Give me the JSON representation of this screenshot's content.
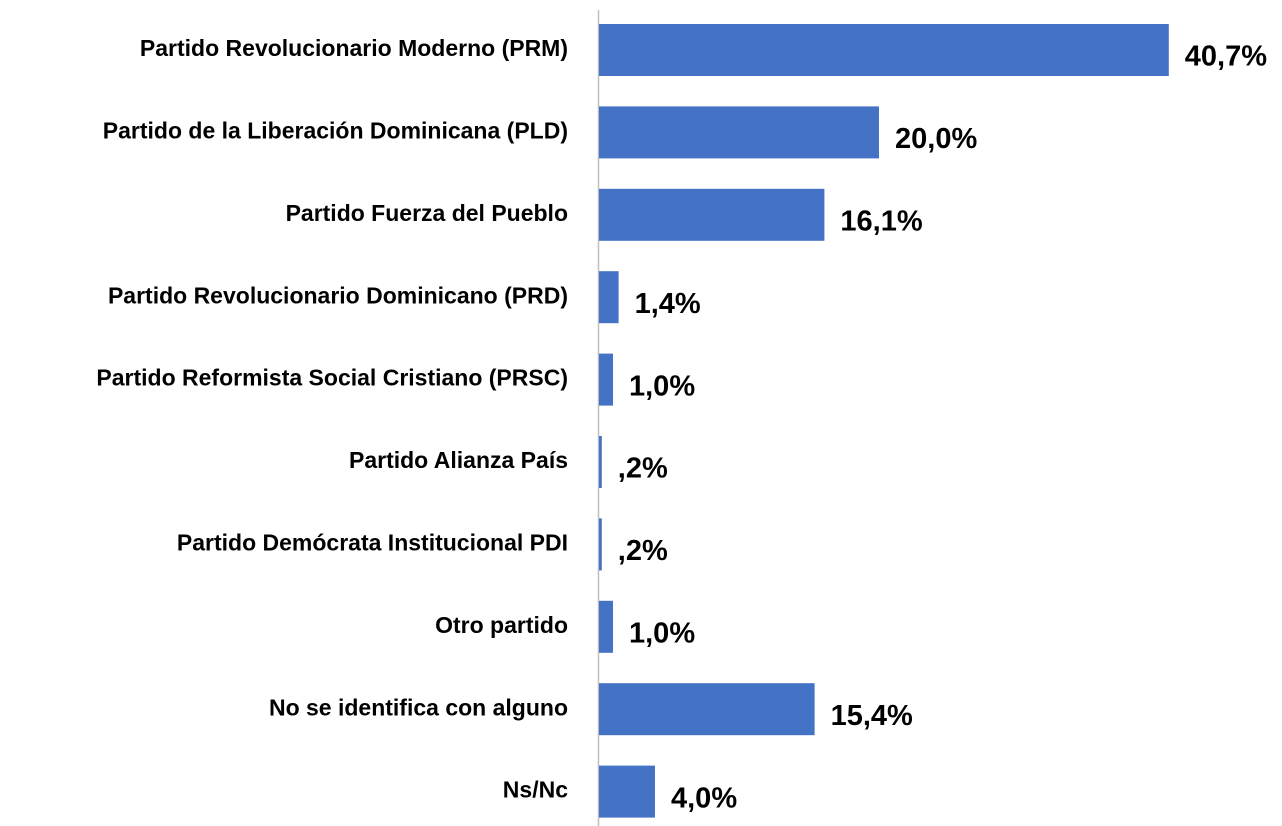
{
  "chart_data": {
    "type": "bar",
    "orientation": "horizontal",
    "categories": [
      "Partido Revolucionario Moderno (PRM)",
      "Partido de la Liberación Dominicana (PLD)",
      "Partido Fuerza del Pueblo",
      "Partido Revolucionario Dominicano (PRD)",
      "Partido Reformista Social Cristiano (PRSC)",
      "Partido Alianza País",
      "Partido Demócrata Institucional PDI",
      "Otro partido",
      "No se identifica con alguno",
      "Ns/Nc"
    ],
    "values": [
      40.7,
      20.0,
      16.1,
      1.4,
      1.0,
      0.2,
      0.2,
      1.0,
      15.4,
      4.0
    ],
    "value_labels": [
      "40,7%",
      "20,0%",
      "16,1%",
      "1,4%",
      "1,0%",
      ",2%",
      ",2%",
      "1,0%",
      "15,4%",
      "4,0%"
    ],
    "color": "#4472c4"
  }
}
